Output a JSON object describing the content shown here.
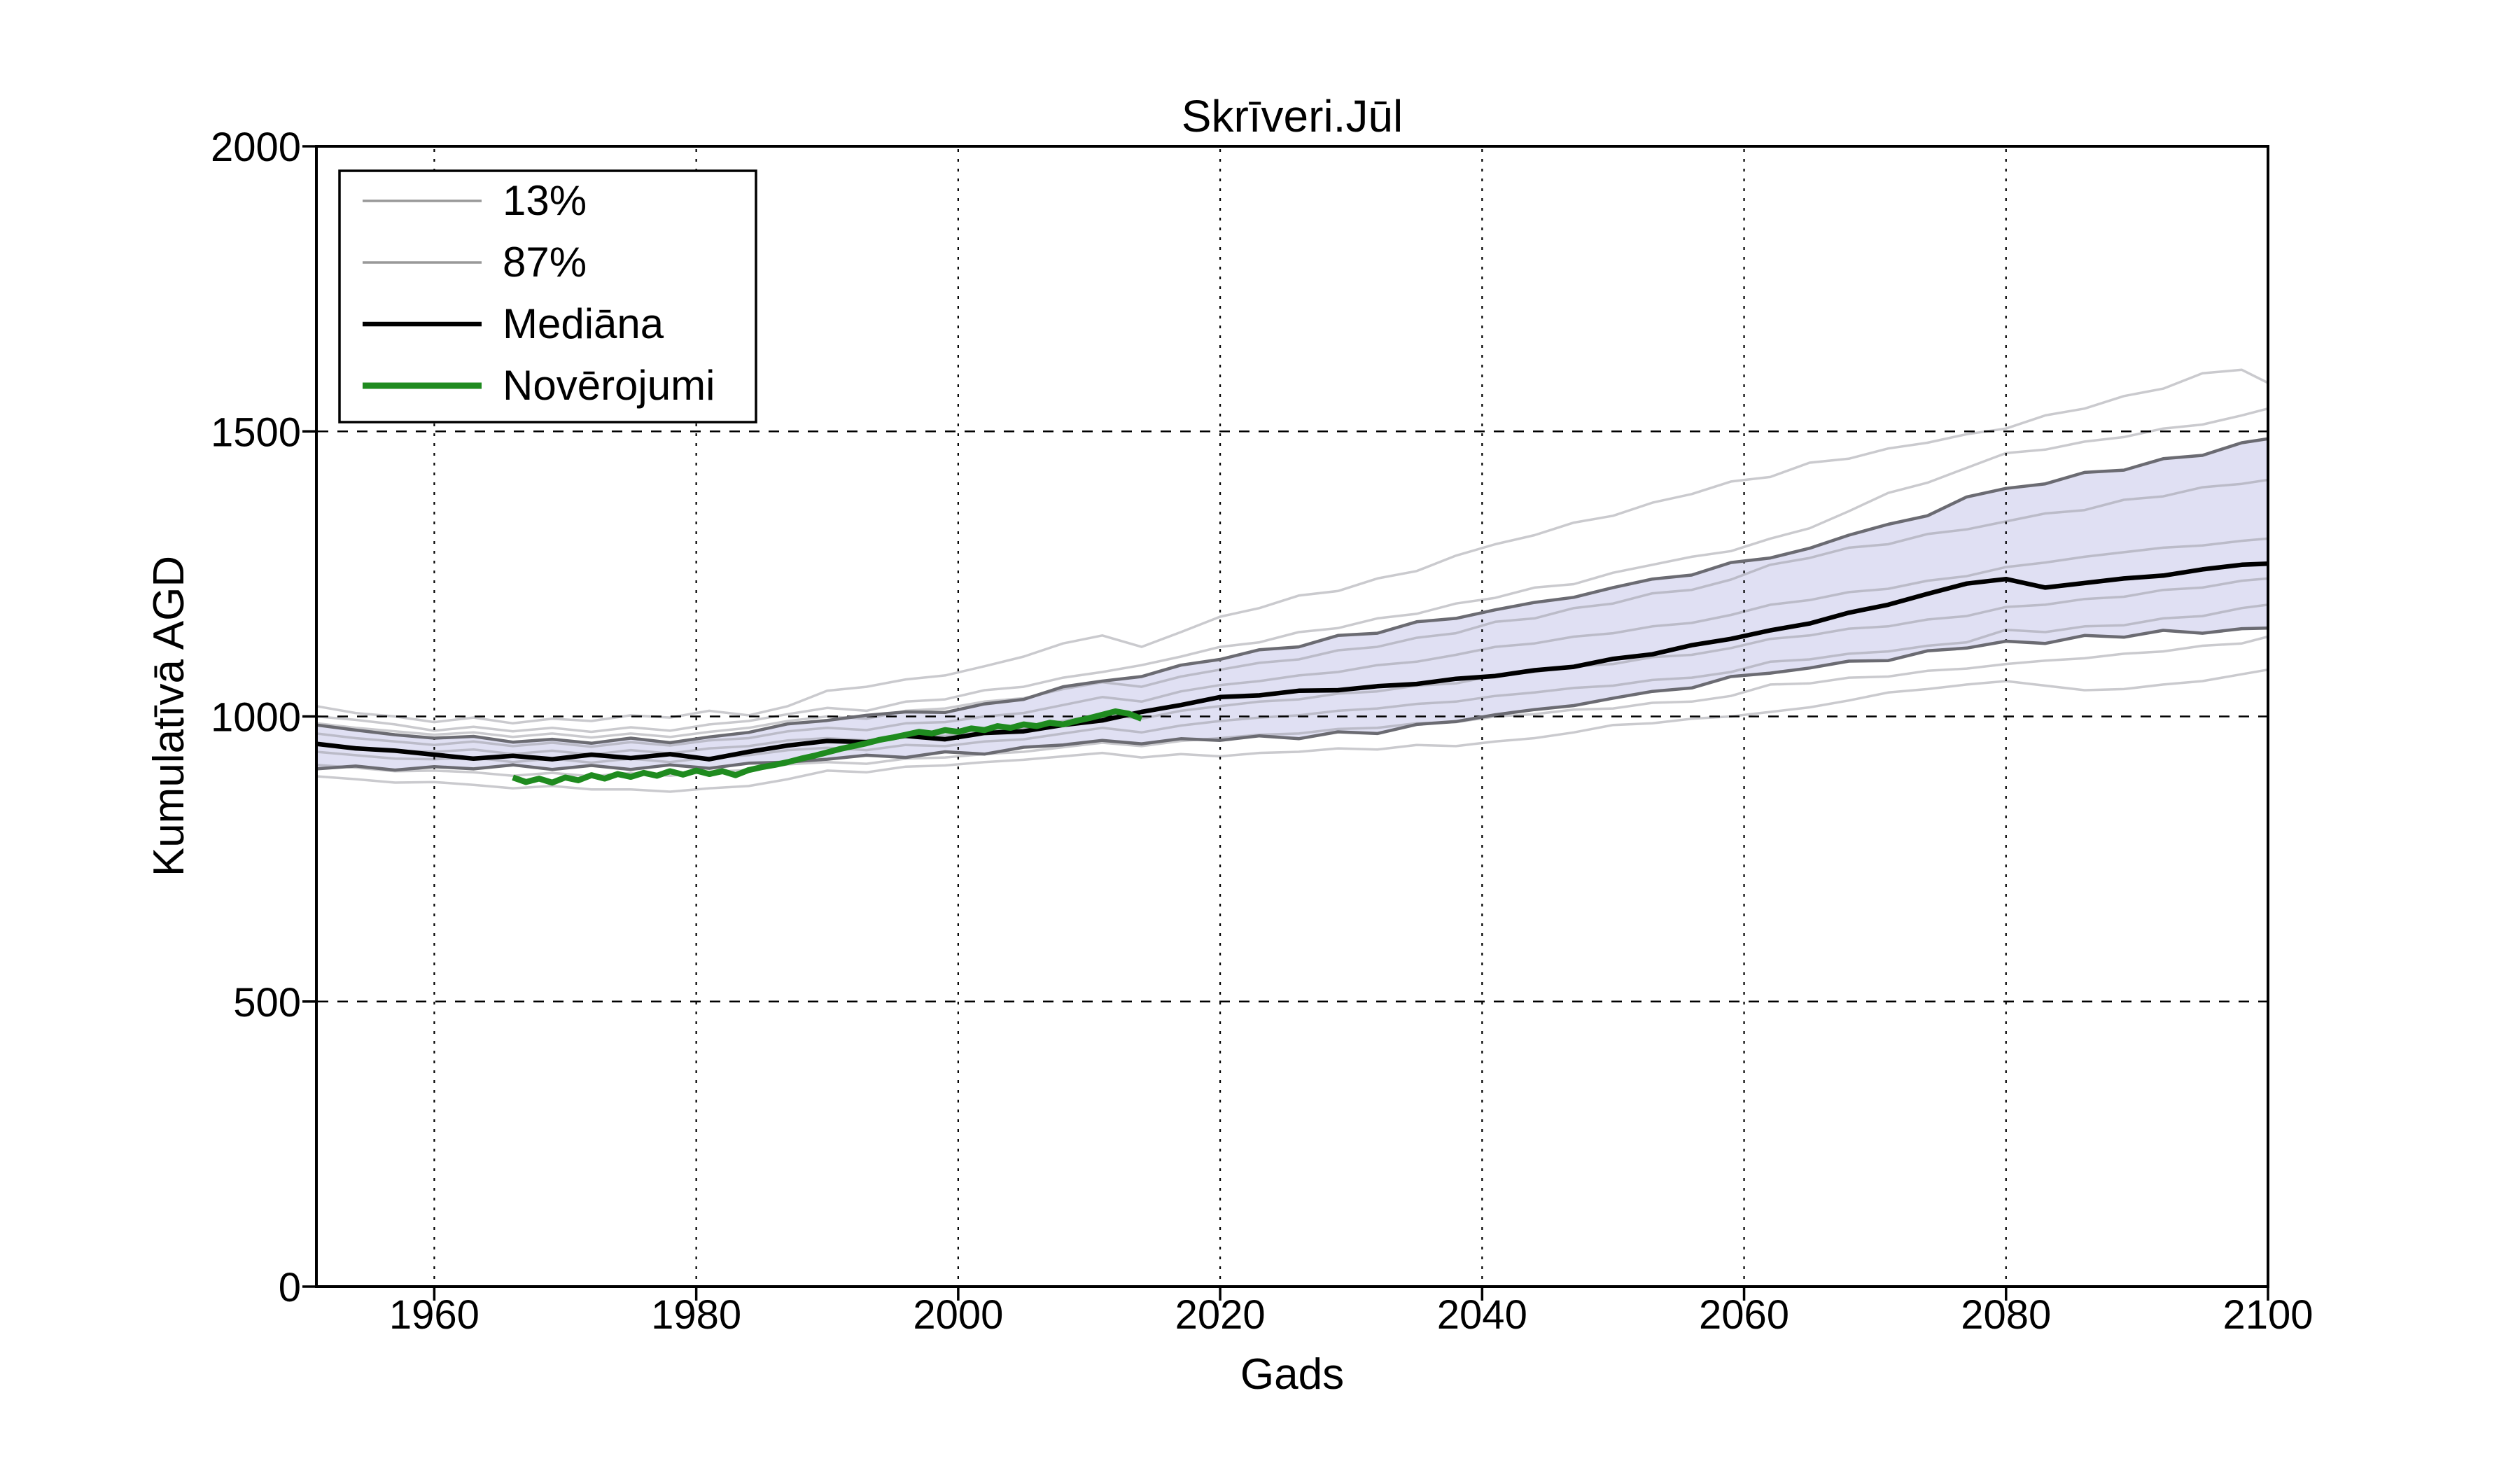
{
  "chart_data": {
    "type": "line",
    "title": "Skrīveri.Jūl",
    "xlabel": "Gads",
    "ylabel": "Kumulatīvā AGD",
    "xlim": [
      1951,
      2100
    ],
    "ylim": [
      0,
      2000
    ],
    "xticks": [
      1960,
      1980,
      2000,
      2020,
      2040,
      2060,
      2080,
      2100
    ],
    "yticks": [
      0,
      500,
      1000,
      1500,
      2000
    ],
    "grid": true,
    "legend_position": "upper left",
    "colors": {
      "median": "#000000",
      "observations": "#1f8b1f",
      "percentile": "#6b6b72",
      "ensemble": "rgba(150,150,158,0.5)",
      "band_fill": "rgba(193,193,232,0.5)",
      "grid": "#000000",
      "frame": "#000000",
      "background": "#ffffff"
    },
    "legend": [
      {
        "label": "13%",
        "color": "#999999",
        "line_width": 3.5
      },
      {
        "label": "87%",
        "color": "#999999",
        "line_width": 3.5
      },
      {
        "label": "Mediāna",
        "color": "#000000",
        "line_width": 6.5
      },
      {
        "label": "Novērojumi",
        "color": "#1f8b1f",
        "line_width": 9
      }
    ],
    "years": [
      1951,
      1954,
      1957,
      1960,
      1963,
      1966,
      1969,
      1972,
      1975,
      1978,
      1981,
      1984,
      1987,
      1990,
      1993,
      1996,
      1999,
      2002,
      2005,
      2008,
      2011,
      2014,
      2017,
      2020,
      2023,
      2026,
      2029,
      2032,
      2035,
      2038,
      2041,
      2044,
      2047,
      2050,
      2053,
      2056,
      2059,
      2062,
      2065,
      2068,
      2071,
      2074,
      2077,
      2080,
      2083,
      2086,
      2089,
      2092,
      2095,
      2098,
      2100
    ],
    "band_between": [
      "13%",
      "87%"
    ],
    "series": [
      {
        "name": "13%",
        "role": "percentile-low",
        "values": [
          908,
          913,
          906,
          912,
          908,
          915,
          907,
          914,
          907,
          915,
          909,
          918,
          920,
          925,
          932,
          928,
          938,
          934,
          946,
          950,
          958,
          952,
          961,
          958,
          966,
          961,
          973,
          970,
          986,
          991,
          1003,
          1012,
          1019,
          1032,
          1044,
          1050,
          1070,
          1076,
          1085,
          1097,
          1098,
          1115,
          1120,
          1132,
          1128,
          1142,
          1139,
          1151,
          1146,
          1154,
          1155
        ]
      },
      {
        "name": "87%",
        "role": "percentile-high",
        "values": [
          985,
          976,
          968,
          962,
          965,
          955,
          960,
          953,
          962,
          954,
          964,
          972,
          987,
          993,
          1002,
          1008,
          1007,
          1022,
          1030,
          1052,
          1062,
          1070,
          1090,
          1100,
          1117,
          1122,
          1142,
          1146,
          1166,
          1172,
          1187,
          1200,
          1209,
          1226,
          1241,
          1248,
          1270,
          1278,
          1295,
          1318,
          1337,
          1352,
          1385,
          1400,
          1408,
          1428,
          1432,
          1452,
          1458,
          1480,
          1487
        ]
      },
      {
        "name": "Mediāna",
        "role": "median",
        "values": [
          952,
          944,
          940,
          933,
          926,
          931,
          925,
          933,
          927,
          934,
          925,
          938,
          949,
          957,
          955,
          966,
          960,
          971,
          974,
          985,
          993,
          1008,
          1020,
          1034,
          1037,
          1045,
          1046,
          1053,
          1057,
          1066,
          1071,
          1081,
          1087,
          1101,
          1109,
          1125,
          1136,
          1151,
          1163,
          1182,
          1196,
          1215,
          1233,
          1241,
          1226,
          1234,
          1242,
          1247,
          1258,
          1266,
          1268
        ]
      },
      {
        "name": "ensemble-1",
        "role": "ensemble",
        "values": [
          1018,
          1006,
          1000,
          990,
          998,
          988,
          996,
          992,
          1002,
          998,
          1010,
          1002,
          1018,
          1045,
          1052,
          1065,
          1072,
          1088,
          1105,
          1128,
          1142,
          1122,
          1148,
          1175,
          1190,
          1212,
          1220,
          1242,
          1255,
          1282,
          1302,
          1318,
          1340,
          1352,
          1375,
          1390,
          1412,
          1420,
          1445,
          1452,
          1470,
          1480,
          1495,
          1505,
          1528,
          1540,
          1562,
          1575,
          1602,
          1608,
          1585
        ]
      },
      {
        "name": "ensemble-2",
        "role": "ensemble",
        "values": [
          1000,
          994,
          986,
          975,
          982,
          974,
          980,
          973,
          981,
          975,
          986,
          992,
          1004,
          1015,
          1010,
          1026,
          1030,
          1046,
          1052,
          1068,
          1078,
          1090,
          1105,
          1122,
          1130,
          1148,
          1155,
          1172,
          1180,
          1198,
          1208,
          1226,
          1232,
          1252,
          1266,
          1280,
          1290,
          1312,
          1330,
          1360,
          1392,
          1410,
          1436,
          1462,
          1468,
          1482,
          1490,
          1505,
          1512,
          1528,
          1540
        ]
      },
      {
        "name": "ensemble-3",
        "role": "ensemble",
        "values": [
          988,
          980,
          974,
          968,
          972,
          964,
          970,
          963,
          970,
          964,
          973,
          980,
          992,
          1000,
          996,
          1010,
          1014,
          1026,
          1032,
          1048,
          1060,
          1052,
          1070,
          1082,
          1094,
          1100,
          1116,
          1122,
          1138,
          1146,
          1166,
          1172,
          1190,
          1198,
          1216,
          1222,
          1240,
          1266,
          1278,
          1296,
          1302,
          1320,
          1328,
          1342,
          1356,
          1362,
          1380,
          1386,
          1402,
          1408,
          1415
        ]
      },
      {
        "name": "ensemble-4",
        "role": "ensemble",
        "values": [
          970,
          962,
          956,
          950,
          956,
          948,
          954,
          947,
          955,
          949,
          958,
          962,
          974,
          980,
          976,
          988,
          990,
          1000,
          1006,
          1020,
          1034,
          1026,
          1044,
          1055,
          1062,
          1072,
          1078,
          1090,
          1096,
          1108,
          1122,
          1128,
          1140,
          1146,
          1158,
          1164,
          1178,
          1196,
          1204,
          1218,
          1224,
          1238,
          1246,
          1262,
          1270,
          1280,
          1288,
          1296,
          1300,
          1308,
          1312
        ]
      },
      {
        "name": "ensemble-5",
        "role": "ensemble",
        "values": [
          952,
          946,
          940,
          938,
          942,
          934,
          940,
          933,
          941,
          935,
          944,
          948,
          958,
          962,
          958,
          968,
          966,
          976,
          980,
          992,
          1004,
          996,
          1010,
          1018,
          1026,
          1030,
          1040,
          1044,
          1054,
          1058,
          1072,
          1078,
          1088,
          1092,
          1104,
          1108,
          1120,
          1136,
          1142,
          1154,
          1158,
          1170,
          1176,
          1192,
          1196,
          1206,
          1210,
          1222,
          1226,
          1238,
          1242
        ]
      },
      {
        "name": "ensemble-6",
        "role": "ensemble",
        "values": [
          938,
          932,
          926,
          925,
          928,
          920,
          926,
          919,
          926,
          920,
          928,
          932,
          941,
          945,
          941,
          950,
          948,
          956,
          960,
          970,
          980,
          972,
          984,
          992,
          998,
          1002,
          1010,
          1014,
          1022,
          1026,
          1036,
          1042,
          1050,
          1054,
          1064,
          1068,
          1078,
          1096,
          1100,
          1110,
          1114,
          1124,
          1130,
          1152,
          1148,
          1158,
          1160,
          1172,
          1176,
          1190,
          1196
        ]
      },
      {
        "name": "ensemble-7",
        "role": "ensemble",
        "values": [
          915,
          910,
          904,
          905,
          902,
          896,
          901,
          895,
          901,
          896,
          903,
          906,
          916,
          920,
          917,
          926,
          928,
          934,
          938,
          946,
          954,
          948,
          957,
          962,
          968,
          970,
          978,
          980,
          988,
          990,
          1000,
          1004,
          1012,
          1014,
          1024,
          1026,
          1036,
          1056,
          1058,
          1068,
          1070,
          1080,
          1084,
          1092,
          1098,
          1102,
          1110,
          1114,
          1124,
          1128,
          1140
        ]
      },
      {
        "name": "ensemble-8",
        "role": "ensemble",
        "values": [
          895,
          890,
          884,
          885,
          880,
          874,
          878,
          872,
          872,
          868,
          874,
          878,
          890,
          905,
          902,
          912,
          914,
          920,
          924,
          930,
          936,
          928,
          934,
          930,
          936,
          938,
          944,
          942,
          950,
          948,
          956,
          962,
          972,
          985,
          988,
          996,
          1000,
          1008,
          1016,
          1028,
          1042,
          1048,
          1056,
          1062,
          1054,
          1046,
          1048,
          1056,
          1062,
          1074,
          1082
        ]
      }
    ],
    "observations": {
      "name": "Novērojumi",
      "start_year": 1966,
      "year_step": 1,
      "values": [
        893,
        885,
        891,
        884,
        893,
        888,
        897,
        891,
        899,
        894,
        901,
        896,
        904,
        898,
        905,
        899,
        904,
        897,
        906,
        911,
        915,
        920,
        926,
        931,
        937,
        943,
        948,
        953,
        959,
        963,
        968,
        973,
        970,
        976,
        973,
        979,
        976,
        983,
        980,
        986,
        983,
        989,
        986,
        992,
        997,
        1003,
        1009,
        1005,
        996
      ]
    }
  }
}
